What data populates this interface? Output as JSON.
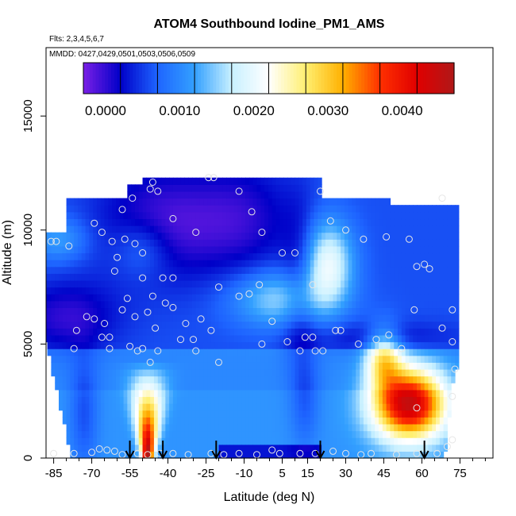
{
  "chart_data": {
    "type": "heatmap",
    "title": "ATOM4 Southbound Iodine_PM1_AMS",
    "flights_label": "Flts: 2,3,4,5,6,7",
    "dates_label": "MMDD: 0427,0429,0501,0503,0506,0509",
    "xlabel": "Latitude (deg N)",
    "ylabel": "Altitude (m)",
    "xlim": [
      -88,
      88
    ],
    "ylim": [
      0,
      18000
    ],
    "x_ticks": [
      -85,
      -70,
      -55,
      -40,
      -25,
      -10,
      5,
      15,
      30,
      45,
      60,
      75
    ],
    "x_tick_labels": [
      "-85",
      "-70",
      "-55",
      "-40",
      "-25",
      "-10",
      "5",
      "15",
      "30",
      "45",
      "60",
      "75"
    ],
    "y_ticks": [
      0,
      5000,
      10000,
      15000
    ],
    "y_tick_labels": [
      "0",
      "5000",
      "10000",
      "15000"
    ],
    "colorbar": {
      "range": [
        -0.0003,
        0.0047
      ],
      "tick_values": [
        0.0,
        0.001,
        0.002,
        0.003,
        0.004
      ],
      "tick_labels": [
        "0.0000",
        "0.0010",
        "0.0020",
        "0.0030",
        "0.0040"
      ],
      "colors": [
        "#7a1fe6",
        "#0000c8",
        "#1e64ff",
        "#33a0ff",
        "#c8f0ff",
        "#ffffff",
        "#ffef70",
        "#ffb000",
        "#ff3000",
        "#e00000",
        "#b01818"
      ]
    },
    "arrow_latitudes": [
      -55,
      -42,
      -21,
      20,
      61
    ],
    "sample_points": [
      [
        -85,
        200
      ],
      [
        -77,
        200
      ],
      [
        -70,
        250
      ],
      [
        -67,
        400
      ],
      [
        -64,
        350
      ],
      [
        -61,
        300
      ],
      [
        -58,
        150
      ],
      [
        -52,
        200
      ],
      [
        -48,
        150
      ],
      [
        -43,
        200
      ],
      [
        -38,
        200
      ],
      [
        -32,
        150
      ],
      [
        -23,
        200
      ],
      [
        -18,
        150
      ],
      [
        -12,
        200
      ],
      [
        -5,
        150
      ],
      [
        1,
        350
      ],
      [
        4,
        200
      ],
      [
        12,
        200
      ],
      [
        18,
        200
      ],
      [
        25,
        300
      ],
      [
        30,
        200
      ],
      [
        36,
        150
      ],
      [
        40,
        200
      ],
      [
        50,
        150
      ],
      [
        58,
        200
      ],
      [
        66,
        200
      ],
      [
        70,
        500
      ],
      [
        -86,
        9500
      ],
      [
        -84,
        9500
      ],
      [
        -79,
        9300
      ],
      [
        -69,
        10300
      ],
      [
        -66,
        9900
      ],
      [
        -62,
        9500
      ],
      [
        -57,
        9600
      ],
      [
        -53,
        9400
      ],
      [
        -50,
        9000
      ],
      [
        -60,
        8800
      ],
      [
        -58,
        10900
      ],
      [
        -54,
        11400
      ],
      [
        -47,
        11800
      ],
      [
        -46,
        12100
      ],
      [
        -44,
        11700
      ],
      [
        -38,
        10500
      ],
      [
        -29,
        9900
      ],
      [
        -24,
        12300
      ],
      [
        -22,
        12300
      ],
      [
        -12,
        11700
      ],
      [
        -7,
        10800
      ],
      [
        -3,
        9900
      ],
      [
        5,
        9000
      ],
      [
        10,
        9000
      ],
      [
        20,
        11700
      ],
      [
        24,
        10400
      ],
      [
        30,
        10000
      ],
      [
        37,
        9600
      ],
      [
        46,
        9700
      ],
      [
        55,
        9600
      ],
      [
        68,
        11400
      ],
      [
        -61,
        8200
      ],
      [
        -56,
        7000
      ],
      [
        -50,
        7900
      ],
      [
        -46,
        7100
      ],
      [
        -42,
        7900
      ],
      [
        -38,
        7900
      ],
      [
        -20,
        7500
      ],
      [
        -12,
        7100
      ],
      [
        -8,
        7200
      ],
      [
        -4,
        7600
      ],
      [
        17,
        7600
      ],
      [
        58,
        8400
      ],
      [
        61,
        8500
      ],
      [
        63,
        8300
      ],
      [
        57,
        6500
      ],
      [
        72,
        6500
      ],
      [
        -89,
        6300
      ],
      [
        -72,
        6200
      ],
      [
        -69,
        6100
      ],
      [
        -65,
        5900
      ],
      [
        -58,
        6500
      ],
      [
        -53,
        6200
      ],
      [
        -48,
        6400
      ],
      [
        -45,
        5700
      ],
      [
        -41,
        6800
      ],
      [
        -38,
        6600
      ],
      [
        -33,
        5900
      ],
      [
        -27,
        6100
      ],
      [
        -35,
        5200
      ],
      [
        -30,
        5200
      ],
      [
        -23,
        5600
      ],
      [
        -76,
        5600
      ],
      [
        -66,
        5300
      ],
      [
        -63,
        5300
      ],
      [
        -55,
        4900
      ],
      [
        -52,
        4700
      ],
      [
        -44,
        4700
      ],
      [
        -29,
        4700
      ],
      [
        1,
        6000
      ],
      [
        -3,
        5000
      ],
      [
        7,
        5100
      ],
      [
        14,
        5300
      ],
      [
        17,
        5300
      ],
      [
        26,
        5600
      ],
      [
        28,
        5600
      ],
      [
        35,
        5000
      ],
      [
        42,
        5200
      ],
      [
        47,
        5400
      ],
      [
        52,
        4800
      ],
      [
        68,
        5700
      ],
      [
        72,
        5100
      ],
      [
        -77,
        4800
      ],
      [
        -63,
        4800
      ],
      [
        -50,
        4800
      ],
      [
        -47,
        4200
      ],
      [
        -20,
        4200
      ],
      [
        12,
        4700
      ],
      [
        18,
        4700
      ],
      [
        21,
        4700
      ],
      [
        73,
        3900
      ],
      [
        72,
        2700
      ],
      [
        58,
        2200
      ],
      [
        72,
        800
      ]
    ]
  }
}
